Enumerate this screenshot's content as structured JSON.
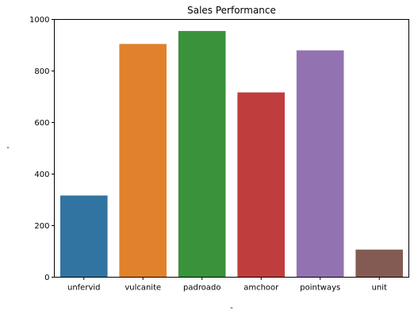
{
  "chart_data": {
    "type": "bar",
    "title": "Sales Performance",
    "xlabel": "-",
    "ylabel": "-",
    "categories": [
      "unfervid",
      "vulcanite",
      "padroado",
      "amchoor",
      "pointways",
      "unit"
    ],
    "values": [
      317,
      905,
      955,
      717,
      880,
      107
    ],
    "colors": [
      "#3274a1",
      "#e1812c",
      "#3a923a",
      "#c03d3e",
      "#9372b2",
      "#845b53"
    ],
    "ylim": [
      0,
      1000
    ],
    "yticks": [
      0,
      200,
      400,
      600,
      800,
      1000
    ],
    "grid": false,
    "legend": "none"
  }
}
